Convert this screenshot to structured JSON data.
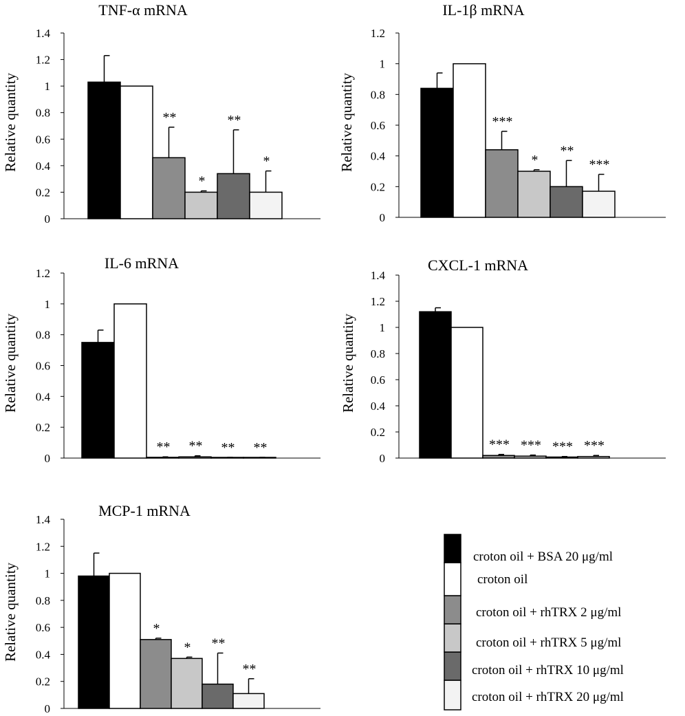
{
  "colors": [
    "#000000",
    "#ffffff",
    "#8c8c8c",
    "#c8c8c8",
    "#6a6a6a",
    "#f3f3f3"
  ],
  "legend": {
    "items": [
      "croton oil + BSA 20 μg/ml",
      "croton oil",
      "croton oil + rhTRX 2 μg/ml",
      "croton oil + rhTRX 5 μg/ml",
      "croton oil + rhTRX 10 μg/ml",
      "croton oil + rhTRX 20 μg/ml"
    ]
  },
  "chart_data": [
    {
      "type": "bar",
      "title": "TNF-α mRNA",
      "ylabel": "Relative quantity",
      "ylim": [
        0,
        1.4
      ],
      "yticks": [
        "0",
        "0.2",
        "0.4",
        "0.6",
        "0.8",
        "1",
        "1.2",
        "1.4"
      ],
      "series": [
        {
          "name": "croton oil + BSA 20 μg/ml",
          "value": 1.03,
          "error": 0.2,
          "sig": ""
        },
        {
          "name": "croton oil",
          "value": 1.0,
          "error": 0,
          "sig": ""
        },
        {
          "name": "croton oil + rhTRX 2 μg/ml",
          "value": 0.46,
          "error": 0.23,
          "sig": "**"
        },
        {
          "name": "croton oil + rhTRX 5 μg/ml",
          "value": 0.2,
          "error": 0.01,
          "sig": "*"
        },
        {
          "name": "croton oil + rhTRX 10 μg/ml",
          "value": 0.34,
          "error": 0.33,
          "sig": "**"
        },
        {
          "name": "croton oil + rhTRX 20 μg/ml",
          "value": 0.2,
          "error": 0.16,
          "sig": "*"
        }
      ]
    },
    {
      "type": "bar",
      "title": "IL-1β mRNA",
      "ylabel": "Relative quantity",
      "ylim": [
        0,
        1.2
      ],
      "yticks": [
        "0",
        "0.2",
        "0.4",
        "0.6",
        "0.8",
        "1",
        "1.2"
      ],
      "series": [
        {
          "name": "croton oil + BSA 20 μg/ml",
          "value": 0.84,
          "error": 0.1,
          "sig": ""
        },
        {
          "name": "croton oil",
          "value": 1.0,
          "error": 0,
          "sig": ""
        },
        {
          "name": "croton oil + rhTRX 2 μg/ml",
          "value": 0.44,
          "error": 0.12,
          "sig": "***"
        },
        {
          "name": "croton oil + rhTRX 5 μg/ml",
          "value": 0.3,
          "error": 0.01,
          "sig": "*"
        },
        {
          "name": "croton oil + rhTRX 10 μg/ml",
          "value": 0.2,
          "error": 0.17,
          "sig": "**"
        },
        {
          "name": "croton oil + rhTRX 20 μg/ml",
          "value": 0.17,
          "error": 0.11,
          "sig": "***"
        }
      ]
    },
    {
      "type": "bar",
      "title": "IL-6 mRNA",
      "ylabel": "Relative quantity",
      "ylim": [
        0,
        1.2
      ],
      "yticks": [
        "0",
        "0.2",
        "0.4",
        "0.6",
        "0.8",
        "1",
        "1.2"
      ],
      "series": [
        {
          "name": "croton oil + BSA 20 μg/ml",
          "value": 0.75,
          "error": 0.08,
          "sig": ""
        },
        {
          "name": "croton oil",
          "value": 1.0,
          "error": 0,
          "sig": ""
        },
        {
          "name": "croton oil + rhTRX 2 μg/ml",
          "value": 0.005,
          "error": 0.003,
          "sig": "**"
        },
        {
          "name": "croton oil + rhTRX 5 μg/ml",
          "value": 0.008,
          "error": 0.007,
          "sig": "**"
        },
        {
          "name": "croton oil + rhTRX 10 μg/ml",
          "value": 0.003,
          "error": 0.002,
          "sig": "**"
        },
        {
          "name": "croton oil + rhTRX 20 μg/ml",
          "value": 0.003,
          "error": 0.002,
          "sig": "**"
        }
      ]
    },
    {
      "type": "bar",
      "title": "CXCL-1 mRNA",
      "ylabel": "Relative quantity",
      "ylim": [
        0,
        1.4
      ],
      "yticks": [
        "0",
        "0.2",
        "0.4",
        "0.6",
        "0.8",
        "1",
        "1.2",
        "1.4"
      ],
      "series": [
        {
          "name": "croton oil + BSA 20 μg/ml",
          "value": 1.12,
          "error": 0.03,
          "sig": ""
        },
        {
          "name": "croton oil",
          "value": 1.0,
          "error": 0,
          "sig": ""
        },
        {
          "name": "croton oil + rhTRX 2 μg/ml",
          "value": 0.02,
          "error": 0.008,
          "sig": "***"
        },
        {
          "name": "croton oil + rhTRX 5 μg/ml",
          "value": 0.015,
          "error": 0.008,
          "sig": "***"
        },
        {
          "name": "croton oil + rhTRX 10 μg/ml",
          "value": 0.008,
          "error": 0.004,
          "sig": "***"
        },
        {
          "name": "croton oil + rhTRX 20 μg/ml",
          "value": 0.012,
          "error": 0.008,
          "sig": "***"
        }
      ]
    },
    {
      "type": "bar",
      "title": "MCP-1 mRNA",
      "ylabel": "Relative quantity",
      "ylim": [
        0,
        1.4
      ],
      "yticks": [
        "0",
        "0.2",
        "0.4",
        "0.6",
        "0.8",
        "1",
        "1.2",
        "1.4"
      ],
      "series": [
        {
          "name": "croton oil + BSA 20 μg/ml",
          "value": 0.98,
          "error": 0.17,
          "sig": ""
        },
        {
          "name": "croton oil",
          "value": 1.0,
          "error": 0,
          "sig": ""
        },
        {
          "name": "croton oil + rhTRX 2 μg/ml",
          "value": 0.51,
          "error": 0.01,
          "sig": "*"
        },
        {
          "name": "croton oil + rhTRX 5 μg/ml",
          "value": 0.37,
          "error": 0.01,
          "sig": "*"
        },
        {
          "name": "croton oil + rhTRX 10 μg/ml",
          "value": 0.18,
          "error": 0.23,
          "sig": "**"
        },
        {
          "name": "croton oil + rhTRX 20 μg/ml",
          "value": 0.11,
          "error": 0.11,
          "sig": "**"
        }
      ]
    }
  ]
}
